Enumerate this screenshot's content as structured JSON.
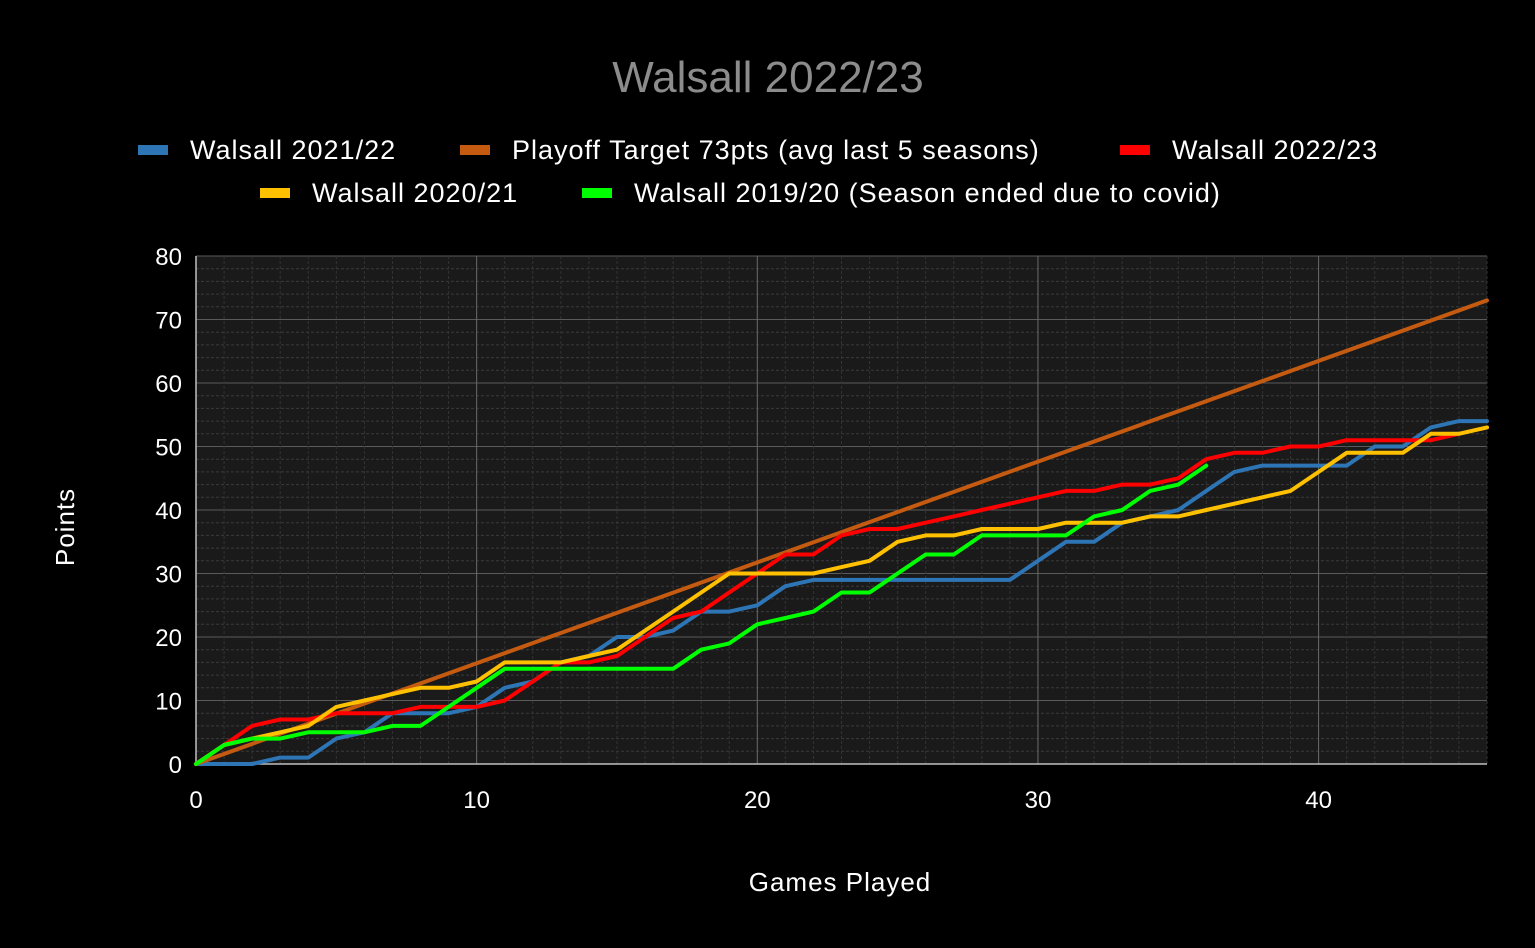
{
  "chart_data": {
    "type": "line",
    "title": "Walsall 2022/23",
    "xlabel": "Games Played",
    "ylabel": "Points",
    "xlim": [
      0,
      46
    ],
    "ylim": [
      0,
      80
    ],
    "x_ticks": [
      0,
      10,
      20,
      30,
      40
    ],
    "y_ticks": [
      0,
      10,
      20,
      30,
      40,
      50,
      60,
      70,
      80
    ],
    "grid": true,
    "legend_position": "top",
    "background": "#000000",
    "series": [
      {
        "name": "Walsall 2021/22",
        "color": "#2e75b6",
        "x": [
          0,
          1,
          2,
          3,
          4,
          5,
          6,
          7,
          8,
          9,
          10,
          11,
          12,
          13,
          14,
          15,
          16,
          17,
          18,
          19,
          20,
          21,
          22,
          23,
          24,
          25,
          26,
          27,
          28,
          29,
          30,
          31,
          32,
          33,
          34,
          35,
          36,
          37,
          38,
          39,
          40,
          41,
          42,
          43,
          44,
          45,
          46
        ],
        "y": [
          0,
          0,
          0,
          1,
          1,
          4,
          5,
          8,
          8,
          8,
          9,
          12,
          13,
          16,
          17,
          20,
          20,
          21,
          24,
          24,
          25,
          28,
          29,
          29,
          29,
          29,
          29,
          29,
          29,
          29,
          32,
          35,
          35,
          38,
          39,
          40,
          43,
          46,
          47,
          47,
          47,
          47,
          50,
          50,
          53,
          54,
          54
        ]
      },
      {
        "name": "Playoff Target 73pts (avg last 5 seasons)",
        "color": "#c55a11",
        "x": [
          0,
          46
        ],
        "y": [
          0,
          73
        ]
      },
      {
        "name": "Walsall 2022/23",
        "color": "#ff0000",
        "x": [
          0,
          1,
          2,
          3,
          4,
          5,
          6,
          7,
          8,
          9,
          10,
          11,
          12,
          13,
          14,
          15,
          16,
          17,
          18,
          19,
          20,
          21,
          22,
          23,
          24,
          25,
          26,
          27,
          28,
          29,
          30,
          31,
          32,
          33,
          34,
          35,
          36,
          37,
          38,
          39,
          40,
          41,
          42,
          43,
          44,
          45
        ],
        "y": [
          0,
          3,
          6,
          7,
          7,
          8,
          8,
          8,
          9,
          9,
          9,
          10,
          13,
          16,
          16,
          17,
          20,
          23,
          24,
          27,
          30,
          33,
          33,
          36,
          37,
          37,
          38,
          39,
          40,
          41,
          42,
          43,
          43,
          44,
          44,
          45,
          48,
          49,
          49,
          50,
          50,
          51,
          51,
          51,
          51,
          52
        ]
      },
      {
        "name": "Walsall 2020/21",
        "color": "#ffc000",
        "x": [
          0,
          1,
          2,
          3,
          4,
          5,
          6,
          7,
          8,
          9,
          10,
          11,
          12,
          13,
          14,
          15,
          16,
          17,
          18,
          19,
          20,
          21,
          22,
          23,
          24,
          25,
          26,
          27,
          28,
          29,
          30,
          31,
          32,
          33,
          34,
          35,
          36,
          37,
          38,
          39,
          40,
          41,
          42,
          43,
          44,
          45,
          46
        ],
        "y": [
          0,
          3,
          4,
          5,
          6,
          9,
          10,
          11,
          12,
          12,
          13,
          16,
          16,
          16,
          17,
          18,
          21,
          24,
          27,
          30,
          30,
          30,
          30,
          31,
          32,
          35,
          36,
          36,
          37,
          37,
          37,
          38,
          38,
          38,
          39,
          39,
          40,
          41,
          42,
          43,
          46,
          49,
          49,
          49,
          52,
          52,
          53
        ]
      },
      {
        "name": "Walsall 2019/20 (Season ended due to covid)",
        "color": "#00ff00",
        "x": [
          0,
          1,
          2,
          3,
          4,
          5,
          6,
          7,
          8,
          9,
          10,
          11,
          12,
          13,
          14,
          15,
          16,
          17,
          18,
          19,
          20,
          21,
          22,
          23,
          24,
          25,
          26,
          27,
          28,
          29,
          30,
          31,
          32,
          33,
          34,
          35,
          36
        ],
        "y": [
          0,
          3,
          4,
          4,
          5,
          5,
          5,
          6,
          6,
          9,
          12,
          15,
          15,
          15,
          15,
          15,
          15,
          15,
          18,
          19,
          22,
          23,
          24,
          27,
          27,
          30,
          33,
          33,
          36,
          36,
          36,
          36,
          39,
          40,
          43,
          44,
          47
        ]
      }
    ]
  }
}
